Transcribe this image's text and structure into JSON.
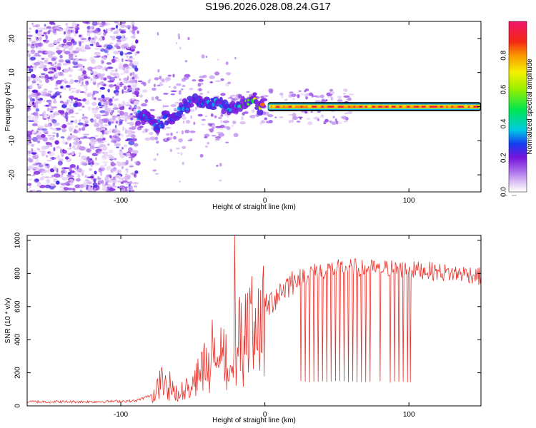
{
  "title": "S196.2026.028.08.24.G17",
  "chart_data": [
    {
      "type": "heatmap",
      "title": "S196.2026.028.08.24.G17",
      "xlabel": "Height of straight line (km)",
      "ylabel": "Frequency (Hz)",
      "xlim": [
        -165,
        150
      ],
      "ylim": [
        -25,
        25
      ],
      "xticks": [
        -100,
        0,
        100
      ],
      "xtick_labels": [
        "-100",
        "0",
        "100"
      ],
      "yticks": [
        -20,
        -10,
        0,
        10,
        20
      ],
      "ytick_labels": [
        "-20",
        "-10",
        "0",
        "10",
        "20"
      ],
      "colorbar": {
        "label": "Normalized spectral amplitude",
        "range": [
          0,
          1
        ],
        "ticks": [
          0.0,
          0.2,
          0.4,
          0.6,
          0.8
        ],
        "tick_labels": [
          "0.0",
          "0.2",
          "0.4",
          "0.6",
          "0.8"
        ]
      },
      "ridge": {
        "description": "dominant spectral line",
        "points": [
          {
            "x": -85,
            "y": -2.5,
            "amp": 0.35
          },
          {
            "x": -75,
            "y": -5.5,
            "amp": 0.3
          },
          {
            "x": -60,
            "y": -1.5,
            "amp": 0.35
          },
          {
            "x": -50,
            "y": 1.0,
            "amp": 0.3
          },
          {
            "x": -40,
            "y": 1.5,
            "amp": 0.35
          },
          {
            "x": -30,
            "y": 0.5,
            "amp": 0.4
          },
          {
            "x": -20,
            "y": -0.5,
            "amp": 0.45
          },
          {
            "x": -15,
            "y": 1.5,
            "amp": 0.55
          },
          {
            "x": -10,
            "y": 2.0,
            "amp": 0.6
          },
          {
            "x": -5,
            "y": 1.0,
            "amp": 0.7
          },
          {
            "x": 0,
            "y": 0.2,
            "amp": 0.85
          },
          {
            "x": 50,
            "y": 0.0,
            "amp": 0.95
          },
          {
            "x": 100,
            "y": 0.0,
            "amp": 1.0
          },
          {
            "x": 150,
            "y": 0.0,
            "amp": 1.0
          }
        ]
      }
    },
    {
      "type": "line",
      "xlabel": "Height of straight line (km)",
      "ylabel": "SNR (10 * v/v)",
      "xlim": [
        -165,
        150
      ],
      "ylim": [
        0,
        1030
      ],
      "xticks": [
        -100,
        0,
        100
      ],
      "xtick_labels": [
        "-100",
        "0",
        "100"
      ],
      "yticks": [
        0,
        200,
        400,
        600,
        800,
        1000
      ],
      "ytick_labels": [
        "0",
        "200",
        "400",
        "600",
        "800",
        "1000"
      ],
      "series": [
        {
          "name": "SNR",
          "color": "#e8302a",
          "envelope_x": [
            -165,
            -120,
            -90,
            -80,
            -70,
            -60,
            -50,
            -40,
            -30,
            -25,
            -20,
            -10,
            0,
            10,
            20,
            30,
            40,
            50,
            60,
            70,
            80,
            90,
            100,
            110,
            120,
            130,
            140,
            150
          ],
          "envelope_y": [
            25,
            25,
            30,
            60,
            180,
            80,
            150,
            300,
            420,
            250,
            420,
            500,
            580,
            690,
            760,
            800,
            820,
            830,
            840,
            830,
            830,
            830,
            820,
            820,
            810,
            800,
            800,
            780
          ],
          "spike": {
            "x": -21,
            "y": 1030
          },
          "dropouts_x": [
            25,
            28,
            31,
            34,
            37,
            40,
            43,
            46,
            49,
            52,
            55,
            58,
            61,
            64,
            67,
            70,
            73,
            80,
            87,
            90,
            93,
            96,
            99,
            101
          ],
          "dropout_y": 140
        }
      ]
    }
  ]
}
